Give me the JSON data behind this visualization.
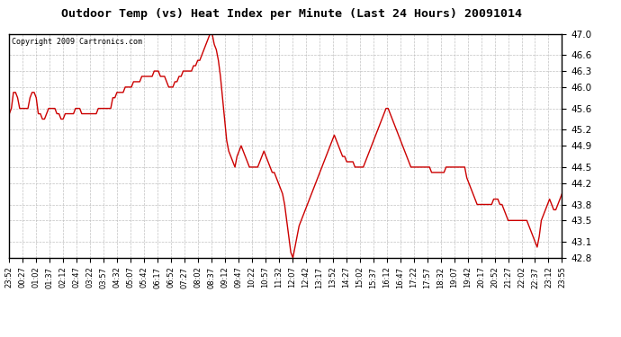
{
  "title": "Outdoor Temp (vs) Heat Index per Minute (Last 24 Hours) 20091014",
  "copyright_text": "Copyright 2009 Cartronics.com",
  "line_color": "#cc0000",
  "bg_color": "#ffffff",
  "plot_bg_color": "#ffffff",
  "grid_color": "#bbbbbb",
  "ylim": [
    42.8,
    47.0
  ],
  "yticks": [
    42.8,
    43.1,
    43.5,
    43.8,
    44.2,
    44.5,
    44.9,
    45.2,
    45.6,
    46.0,
    46.3,
    46.6,
    47.0
  ],
  "x_labels": [
    "23:52",
    "00:27",
    "01:02",
    "01:37",
    "02:12",
    "02:47",
    "03:22",
    "03:57",
    "04:32",
    "05:07",
    "05:42",
    "06:17",
    "06:52",
    "07:27",
    "08:02",
    "08:37",
    "09:12",
    "09:47",
    "10:22",
    "10:57",
    "11:32",
    "12:07",
    "12:42",
    "13:17",
    "13:52",
    "14:27",
    "15:02",
    "15:37",
    "16:12",
    "16:47",
    "17:22",
    "17:57",
    "18:32",
    "19:07",
    "19:42",
    "20:17",
    "20:52",
    "21:27",
    "22:02",
    "22:37",
    "23:12",
    "23:55"
  ],
  "line_width": 1.0,
  "data_y": [
    45.5,
    45.6,
    45.9,
    45.9,
    45.8,
    45.6,
    45.6,
    45.6,
    45.6,
    45.6,
    45.8,
    45.9,
    45.9,
    45.8,
    45.5,
    45.5,
    45.4,
    45.4,
    45.5,
    45.6,
    45.6,
    45.6,
    45.6,
    45.5,
    45.5,
    45.4,
    45.4,
    45.5,
    45.5,
    45.5,
    45.5,
    45.5,
    45.6,
    45.6,
    45.6,
    45.5,
    45.5,
    45.5,
    45.5,
    45.5,
    45.5,
    45.5,
    45.5,
    45.6,
    45.6,
    45.6,
    45.6,
    45.6,
    45.6,
    45.6,
    45.8,
    45.8,
    45.9,
    45.9,
    45.9,
    45.9,
    46.0,
    46.0,
    46.0,
    46.0,
    46.1,
    46.1,
    46.1,
    46.1,
    46.2,
    46.2,
    46.2,
    46.2,
    46.2,
    46.2,
    46.3,
    46.3,
    46.3,
    46.2,
    46.2,
    46.2,
    46.1,
    46.0,
    46.0,
    46.0,
    46.1,
    46.1,
    46.2,
    46.2,
    46.3,
    46.3,
    46.3,
    46.3,
    46.3,
    46.4,
    46.4,
    46.5,
    46.5,
    46.6,
    46.7,
    46.8,
    46.9,
    47.0,
    47.0,
    46.8,
    46.7,
    46.5,
    46.2,
    45.8,
    45.4,
    45.0,
    44.8,
    44.7,
    44.6,
    44.5,
    44.7,
    44.8,
    44.9,
    44.8,
    44.7,
    44.6,
    44.5,
    44.5,
    44.5,
    44.5,
    44.5,
    44.6,
    44.7,
    44.8,
    44.7,
    44.6,
    44.5,
    44.4,
    44.4,
    44.3,
    44.2,
    44.1,
    44.0,
    43.8,
    43.5,
    43.2,
    42.9,
    42.8,
    43.0,
    43.2,
    43.4,
    43.5,
    43.6,
    43.7,
    43.8,
    43.9,
    44.0,
    44.1,
    44.2,
    44.3,
    44.4,
    44.5,
    44.6,
    44.7,
    44.8,
    44.9,
    45.0,
    45.1,
    45.0,
    44.9,
    44.8,
    44.7,
    44.7,
    44.6,
    44.6,
    44.6,
    44.6,
    44.5,
    44.5,
    44.5,
    44.5,
    44.5,
    44.6,
    44.7,
    44.8,
    44.9,
    45.0,
    45.1,
    45.2,
    45.3,
    45.4,
    45.5,
    45.6,
    45.6,
    45.5,
    45.4,
    45.3,
    45.2,
    45.1,
    45.0,
    44.9,
    44.8,
    44.7,
    44.6,
    44.5,
    44.5,
    44.5,
    44.5,
    44.5,
    44.5,
    44.5,
    44.5,
    44.5,
    44.5,
    44.4,
    44.4,
    44.4,
    44.4,
    44.4,
    44.4,
    44.4,
    44.5,
    44.5,
    44.5,
    44.5,
    44.5,
    44.5,
    44.5,
    44.5,
    44.5,
    44.5,
    44.3,
    44.2,
    44.1,
    44.0,
    43.9,
    43.8,
    43.8,
    43.8,
    43.8,
    43.8,
    43.8,
    43.8,
    43.8,
    43.9,
    43.9,
    43.9,
    43.8,
    43.8,
    43.7,
    43.6,
    43.5,
    43.5,
    43.5,
    43.5,
    43.5,
    43.5,
    43.5,
    43.5,
    43.5,
    43.5,
    43.4,
    43.3,
    43.2,
    43.1,
    43.0,
    43.2,
    43.5,
    43.6,
    43.7,
    43.8,
    43.9,
    43.8,
    43.7,
    43.7,
    43.8,
    43.9,
    44.0
  ]
}
